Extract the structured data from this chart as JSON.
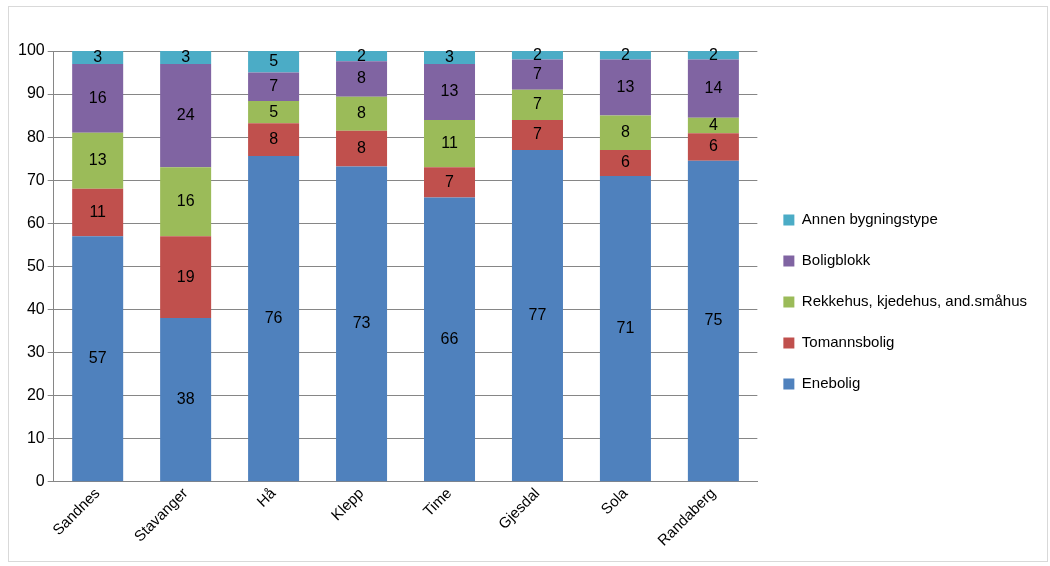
{
  "chart_data": {
    "type": "bar",
    "stacked": true,
    "categories": [
      "Sandnes",
      "Stavanger",
      "Hå",
      "Klepp",
      "Time",
      "Gjesdal",
      "Sola",
      "Randaberg"
    ],
    "ylim": [
      0,
      100
    ],
    "yticks": [
      0,
      10,
      20,
      30,
      40,
      50,
      60,
      70,
      80,
      90,
      100
    ],
    "grid": "y",
    "legend": "right",
    "series": [
      {
        "name": "Enebolig",
        "color": "#4f81bd",
        "values": [
          57,
          38,
          75.6,
          73.2,
          66,
          77,
          71,
          74.5
        ],
        "value_labels": [
          "57",
          "38",
          "76",
          "73",
          "66",
          "77",
          "71",
          "75"
        ]
      },
      {
        "name": "Tomannsbolig",
        "color": "#c0504d",
        "values": [
          11,
          19,
          7.6,
          8.3,
          7,
          7,
          6,
          6.4
        ],
        "value_labels": [
          "11",
          "19",
          "8",
          "8",
          "7",
          "7",
          "6",
          "6"
        ]
      },
      {
        "name": "Rekkehus, kjedehus, and.småhus",
        "color": "#9bbb59",
        "values": [
          13,
          16,
          5.2,
          7.9,
          11,
          7,
          8,
          3.6
        ],
        "value_labels": [
          "13",
          "16",
          "5",
          "8",
          "11",
          "7",
          "8",
          "4"
        ]
      },
      {
        "name": "Boligblokk",
        "color": "#8064a2",
        "values": [
          16,
          24,
          6.6,
          8.2,
          13,
          7,
          13,
          13.5
        ],
        "value_labels": [
          "16",
          "24",
          "7",
          "8",
          "13",
          "7",
          "13",
          "14"
        ]
      },
      {
        "name": "Annen bygningstype",
        "color": "#4bacc6",
        "values": [
          3,
          3,
          5,
          2.4,
          3,
          2,
          2,
          2
        ],
        "value_labels": [
          "3",
          "3",
          "5",
          "2",
          "3",
          "2",
          "2",
          "2"
        ]
      }
    ]
  }
}
